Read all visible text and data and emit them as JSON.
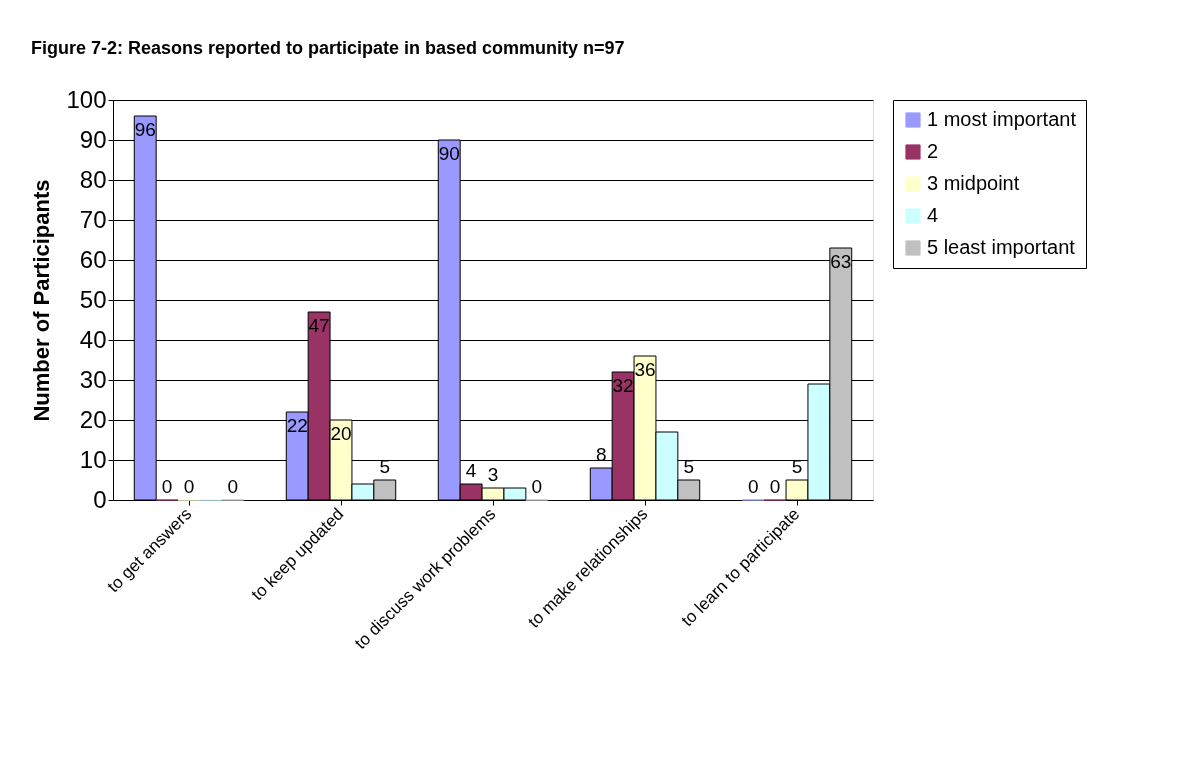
{
  "chart_data": {
    "type": "bar",
    "title": "Figure 7-2: Reasons reported to participate in based community n=97",
    "ylabel": "Number of Participants",
    "categories": [
      "to get answers",
      "to keep updated",
      "to discuss work problems",
      "to make relationships",
      "to learn to participate"
    ],
    "series": [
      {
        "name": "1 most important",
        "color": "#9999ff",
        "values": [
          96,
          22,
          90,
          8,
          0
        ],
        "value_labels": [
          "96",
          "22",
          "90",
          "8",
          "0"
        ]
      },
      {
        "name": "2",
        "color": "#993366",
        "values": [
          0,
          47,
          4,
          32,
          0
        ],
        "value_labels": [
          "0",
          "47",
          "4",
          "32",
          "0"
        ]
      },
      {
        "name": "3 midpoint",
        "color": "#ffffcc",
        "values": [
          0,
          20,
          3,
          36,
          5
        ],
        "value_labels": [
          "0",
          "20",
          "3",
          "36",
          "5"
        ]
      },
      {
        "name": "4",
        "color": "#ccffff",
        "values": [
          0,
          4,
          3,
          17,
          29
        ],
        "value_labels": [
          null,
          null,
          null,
          null,
          null
        ]
      },
      {
        "name": "5 least important",
        "color": "#c0c0c0",
        "values": [
          0,
          5,
          0,
          5,
          63
        ],
        "value_labels": [
          "0",
          "5",
          "0",
          "5",
          "63"
        ]
      }
    ],
    "ylim": [
      0,
      100
    ],
    "yticks": [
      0,
      10,
      20,
      30,
      40,
      50,
      60,
      70,
      80,
      90,
      100
    ],
    "grid": "y",
    "legend": "right"
  }
}
